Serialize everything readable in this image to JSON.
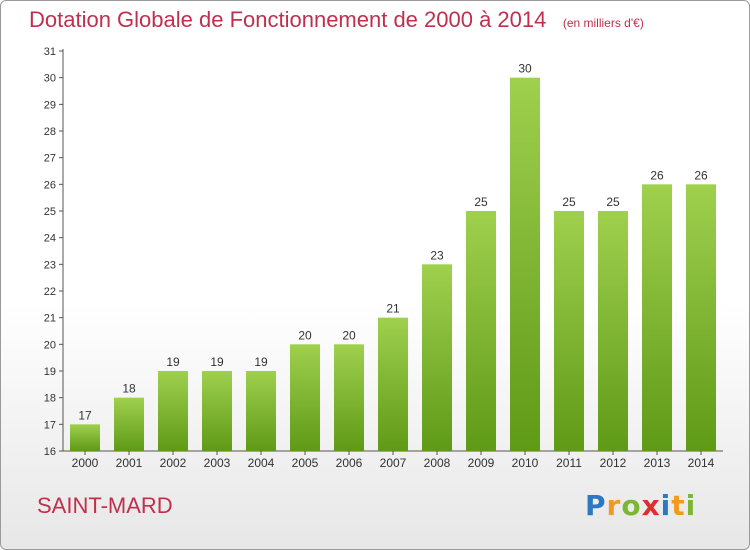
{
  "title": "Dotation Globale de Fonctionnement de 2000 à 2014",
  "subtitle": "(en milliers d'€)",
  "city": "SAINT-MARD",
  "logo": {
    "letters": [
      "P",
      "r",
      "o",
      "x",
      "i",
      "t",
      "i"
    ],
    "colors": [
      "#2b78c5",
      "#f29a1f",
      "#7cb733",
      "#d8312f",
      "#2b78c5",
      "#f29a1f",
      "#7cb733"
    ]
  },
  "colors": {
    "accent": "#c0304e",
    "bar_top": "#9fd04e",
    "bar_bottom": "#5f9a17",
    "axis": "#555555",
    "tick_text": "#333333"
  },
  "chart_data": {
    "type": "bar",
    "categories": [
      "2000",
      "2001",
      "2002",
      "2003",
      "2004",
      "2005",
      "2006",
      "2007",
      "2008",
      "2009",
      "2010",
      "2011",
      "2012",
      "2013",
      "2014"
    ],
    "values": [
      17,
      18,
      19,
      19,
      19,
      20,
      20,
      21,
      23,
      25,
      30,
      25,
      25,
      26,
      26
    ],
    "ylim": [
      16,
      31
    ],
    "yticks": [
      16,
      17,
      18,
      19,
      20,
      21,
      22,
      23,
      24,
      25,
      26,
      27,
      28,
      29,
      30,
      31
    ],
    "grid": false,
    "data_labels": true
  }
}
